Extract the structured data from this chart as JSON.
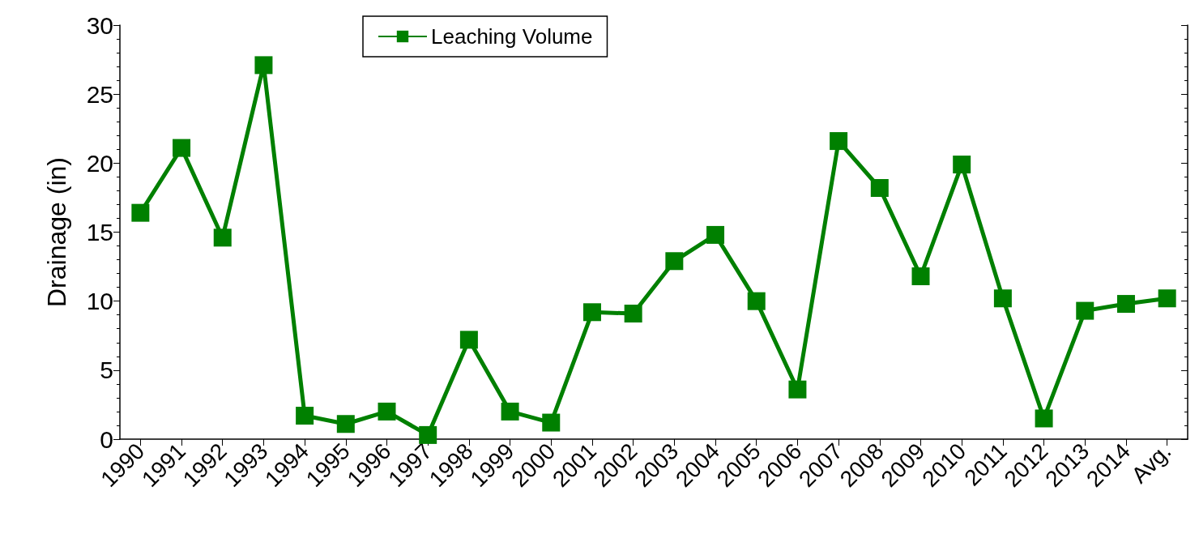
{
  "chart_data": {
    "type": "line",
    "ylabel": "Drainage (in)",
    "categories": [
      "1990",
      "1991",
      "1992",
      "1993",
      "1994",
      "1995",
      "1996",
      "1997",
      "1998",
      "1999",
      "2000",
      "2001",
      "2002",
      "2003",
      "2004",
      "2005",
      "2006",
      "2007",
      "2008",
      "2009",
      "2010",
      "2011",
      "2012",
      "2013",
      "2014",
      "Avg."
    ],
    "series": [
      {
        "name": "Leaching Volume",
        "color": "#008000",
        "values": [
          16.4,
          21.1,
          14.6,
          27.1,
          1.7,
          1.1,
          2.0,
          0.3,
          7.2,
          2.0,
          1.2,
          9.2,
          9.1,
          12.9,
          14.8,
          10.0,
          3.6,
          21.6,
          18.2,
          11.8,
          19.9,
          10.2,
          1.5,
          9.3,
          9.8,
          10.2
        ]
      }
    ],
    "ylim": [
      0,
      30
    ],
    "yticks": [
      0,
      5,
      10,
      15,
      20,
      25,
      30
    ],
    "grid": false,
    "legend": "top left",
    "marker": "square",
    "line_style": "solid"
  }
}
